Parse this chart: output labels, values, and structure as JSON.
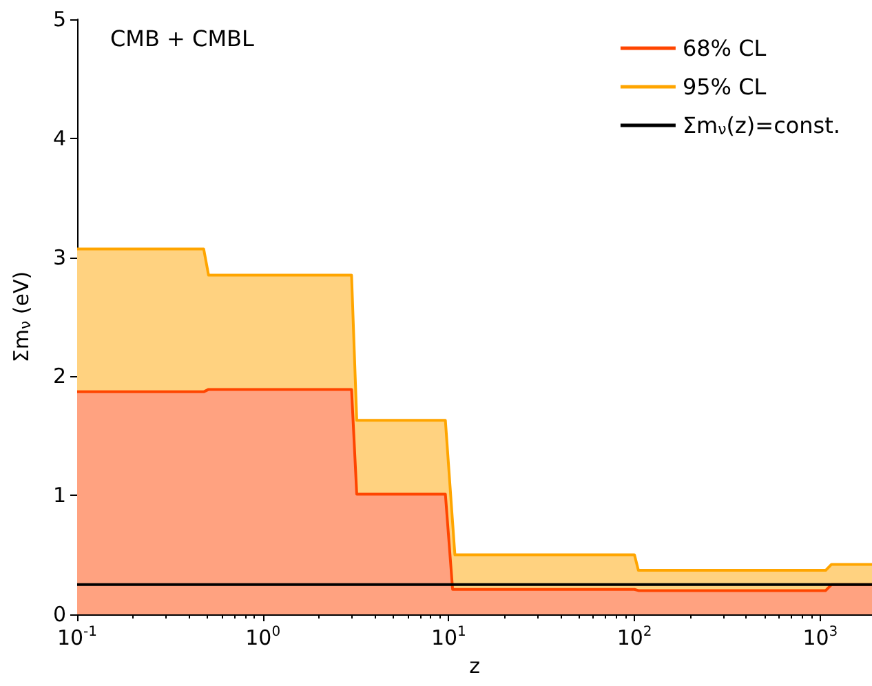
{
  "chart_data": {
    "type": "area",
    "xlabel": "z",
    "ylabel": "Σm$_{ν}$ (eV)",
    "annotations": [
      "CMB + CMBL"
    ],
    "xlim": [
      0.1,
      1900
    ],
    "ylim": [
      0,
      5
    ],
    "log": "x",
    "xticks": [
      {
        "value": 0.1,
        "label": "10$^{-1}$"
      },
      {
        "value": 1,
        "label": "10$^{0}$"
      },
      {
        "value": 10,
        "label": "10$^{1}$"
      },
      {
        "value": 100,
        "label": "10$^{2}$"
      },
      {
        "value": 1000,
        "label": "10$^{3}$"
      }
    ],
    "yticks": [
      0,
      1,
      2,
      3,
      4,
      5
    ],
    "grid": false,
    "legend": "top right",
    "marker": "none",
    "series": [
      {
        "name": "68% CL",
        "color": "#ff4500",
        "x": [
          0.1,
          0.48,
          0.51,
          3.0,
          3.2,
          9.6,
          10.5,
          100,
          105,
          1070,
          1150,
          1900
        ],
        "values": [
          1.87,
          1.87,
          1.89,
          1.89,
          1.01,
          1.01,
          0.21,
          0.21,
          0.2,
          0.2,
          0.25,
          0.25
        ]
      },
      {
        "name": "95% CL",
        "color": "#ffa500",
        "x": [
          0.1,
          0.48,
          0.51,
          3.0,
          3.2,
          9.6,
          10.8,
          100,
          105,
          1070,
          1150,
          1900
        ],
        "values": [
          3.07,
          3.07,
          2.85,
          2.85,
          1.63,
          1.63,
          0.5,
          0.5,
          0.37,
          0.37,
          0.42,
          0.42
        ]
      },
      {
        "name": "Σm$_{ν}$(z)=const.",
        "color": "#000000",
        "type": "line",
        "x": [
          0.1,
          1900
        ],
        "values": [
          0.25,
          0.25
        ]
      }
    ]
  }
}
